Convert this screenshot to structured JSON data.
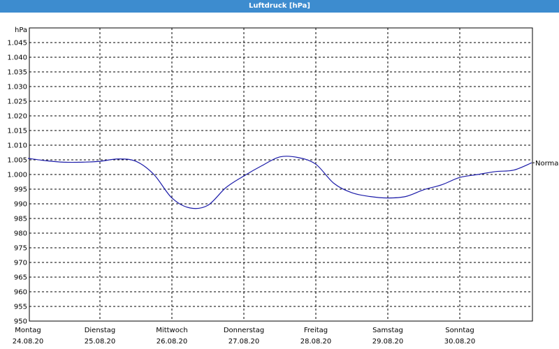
{
  "window": {
    "title": "Luftdruck [hPa]"
  },
  "chart_data": {
    "type": "line",
    "title": "Luftdruck [hPa]",
    "y_unit": "hPa",
    "ylim": [
      950,
      1050
    ],
    "y_ticks": [
      "950",
      "955",
      "960",
      "965",
      "970",
      "975",
      "980",
      "985",
      "990",
      "995",
      "1.000",
      "1.005",
      "1.010",
      "1.015",
      "1.020",
      "1.025",
      "1.030",
      "1.035",
      "1.040",
      "1.045"
    ],
    "x_ticks": [
      {
        "day": "Montag",
        "date": "24.08.20"
      },
      {
        "day": "Dienstag",
        "date": "25.08.20"
      },
      {
        "day": "Mittwoch",
        "date": "26.08.20"
      },
      {
        "day": "Donnerstag",
        "date": "27.08.20"
      },
      {
        "day": "Freitag",
        "date": "28.08.20"
      },
      {
        "day": "Samstag",
        "date": "29.08.20"
      },
      {
        "day": "Sonntag",
        "date": "30.08.20"
      }
    ],
    "grid": true,
    "series": [
      {
        "name": "",
        "x": [
          "24.08.20 00:00",
          "24.08.20 06:00",
          "24.08.20 12:00",
          "24.08.20 18:00",
          "25.08.20 00:00",
          "25.08.20 06:00",
          "25.08.20 12:00",
          "25.08.20 18:00",
          "26.08.20 00:00",
          "26.08.20 06:00",
          "26.08.20 12:00",
          "26.08.20 18:00",
          "27.08.20 00:00",
          "27.08.20 06:00",
          "27.08.20 12:00",
          "27.08.20 18:00",
          "28.08.20 00:00",
          "28.08.20 06:00",
          "28.08.20 12:00",
          "28.08.20 18:00",
          "29.08.20 00:00",
          "29.08.20 06:00",
          "29.08.20 12:00",
          "29.08.20 18:00",
          "30.08.20 00:00",
          "30.08.20 06:00",
          "30.08.20 12:00",
          "30.08.20 18:00",
          "31.08.20 00:00"
        ],
        "values": [
          1005.5,
          1004.7,
          1004.2,
          1004.2,
          1004.5,
          1005.3,
          1004.5,
          1000.0,
          992.0,
          988.6,
          989.5,
          995.5,
          999.5,
          1003.0,
          1006.0,
          1005.8,
          1003.5,
          997.0,
          993.8,
          992.5,
          992.0,
          992.5,
          994.8,
          996.5,
          999.0,
          1000.0,
          1001.0,
          1001.5,
          1004.0
        ]
      }
    ],
    "reference_line": {
      "label": "Normal",
      "value": 1004
    }
  }
}
